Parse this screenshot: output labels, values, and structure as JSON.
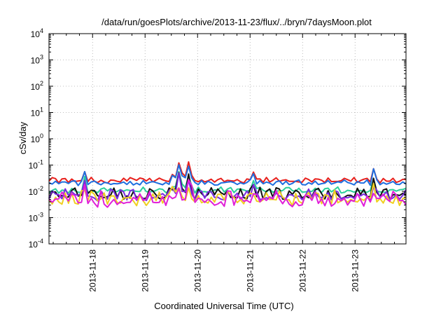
{
  "chart_data": {
    "type": "line",
    "title": "/data/run/goesPlots/archive/2013-11-23/flux/../bryn/7daysMoon.plot",
    "xlabel": "Coordinated Universal Time (UTC)",
    "ylabel": "cSv/day",
    "yscale": "log",
    "ylim_exponent": [
      -4,
      4
    ],
    "ytick_exponents": [
      -4,
      -3,
      -2,
      -1,
      0,
      1,
      2,
      3,
      4
    ],
    "xlim_days": [
      17.17,
      23.97
    ],
    "x_ticks": [
      {
        "label": "2013-11-18",
        "day": 18
      },
      {
        "label": "2013-11-19",
        "day": 19
      },
      {
        "label": "2013-11-20",
        "day": 20
      },
      {
        "label": "2013-11-21",
        "day": 21
      },
      {
        "label": "2013-11-22",
        "day": 22
      },
      {
        "label": "2013-11-23",
        "day": 23
      }
    ],
    "grid": true,
    "legend": "none",
    "series_style": [
      {
        "color": "#e8201c",
        "base": 0.027,
        "amp": 0.2,
        "seed": 1
      },
      {
        "color": "#1f6fe0",
        "base": 0.022,
        "amp": 0.2,
        "seed": 2
      },
      {
        "color": "#2ccf9b",
        "base": 0.0115,
        "amp": 0.22,
        "seed": 3
      },
      {
        "color": "#111111",
        "base": 0.0085,
        "amp": 0.45,
        "seed": 4
      },
      {
        "color": "#7a2be0",
        "base": 0.0075,
        "amp": 0.45,
        "seed": 5
      },
      {
        "color": "#f0d020",
        "base": 0.006,
        "amp": 0.55,
        "seed": 6
      },
      {
        "color": "#e020d8",
        "base": 0.0055,
        "amp": 0.6,
        "seed": 7
      }
    ],
    "spikes_day": [
      17.85,
      19.65,
      19.85,
      21.05,
      23.35
    ]
  }
}
